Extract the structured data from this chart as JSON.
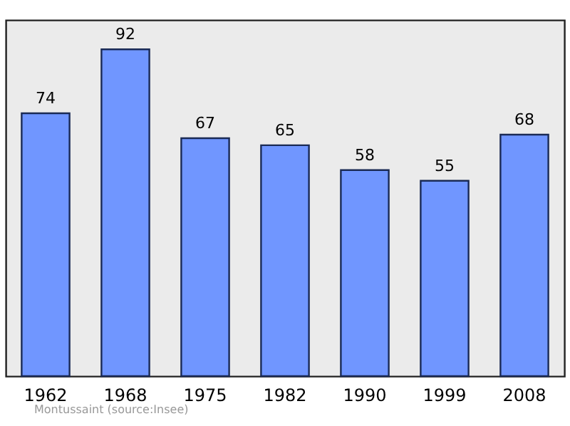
{
  "chart_data": {
    "type": "bar",
    "categories": [
      "1962",
      "1968",
      "1975",
      "1982",
      "1990",
      "1999",
      "2008"
    ],
    "values": [
      74,
      92,
      67,
      65,
      58,
      55,
      68
    ],
    "color": "#7096ff",
    "data_labels": true,
    "annotations": [
      "Montussaint    (source:Insee)"
    ]
  }
}
